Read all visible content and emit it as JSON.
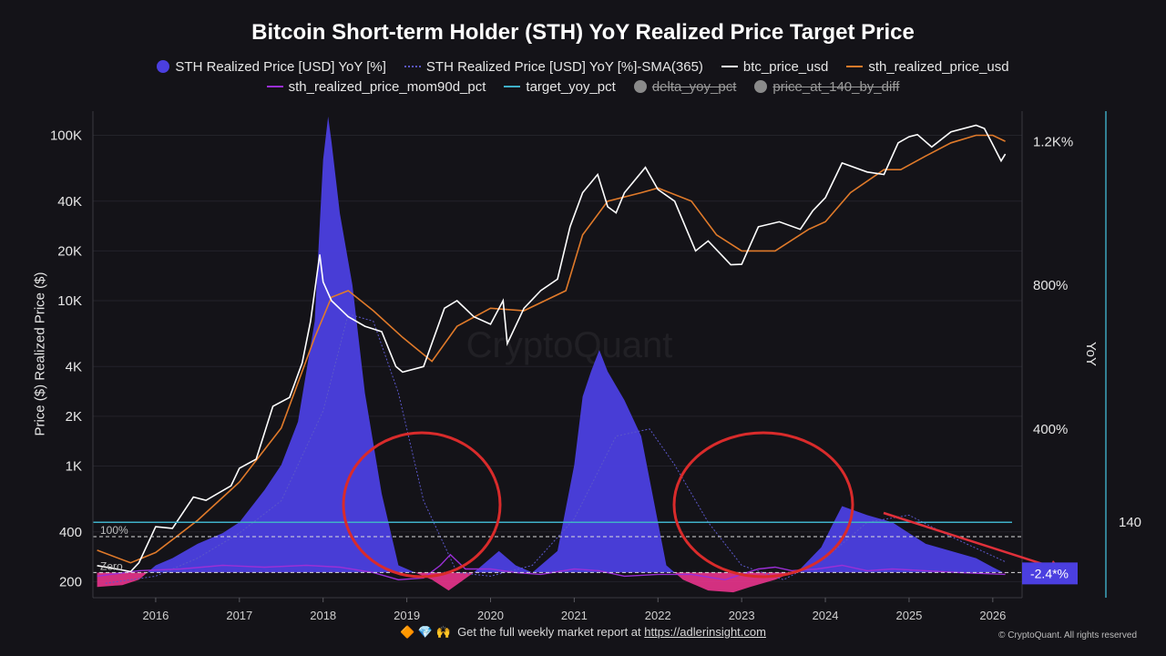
{
  "title": "Bitcoin Short-term Holder (STH) YoY Realized Price Target Price",
  "legend": [
    {
      "label": "STH Realized Price [USD] YoY [%]",
      "color": "#4b3fe0",
      "kind": "dot",
      "enabled": true
    },
    {
      "label": "STH Realized Price [USD] YoY [%]-SMA(365)",
      "color": "#5b57c9",
      "kind": "dash",
      "enabled": true
    },
    {
      "label": "btc_price_usd",
      "color": "#ffffff",
      "kind": "line",
      "enabled": true
    },
    {
      "label": "sth_realized_price_usd",
      "color": "#e07a2a",
      "kind": "line",
      "enabled": true
    },
    {
      "label": "sth_realized_price_mom90d_pct",
      "color": "#9b2fd6",
      "kind": "line",
      "enabled": true
    },
    {
      "label": "target_yoy_pct",
      "color": "#3fb0c8",
      "kind": "line",
      "enabled": true
    },
    {
      "label": "delta_yoy_pct",
      "color": "#8a8a8a",
      "kind": "dot",
      "enabled": false
    },
    {
      "label": "price_at_140_by_diff",
      "color": "#8a8a8a",
      "kind": "dot",
      "enabled": false
    }
  ],
  "axes": {
    "left_title": "Price ($) Realized Price ($)",
    "left_ticks": [
      "100K",
      "40K",
      "20K",
      "10K",
      "4K",
      "2K",
      "1K",
      "400",
      "200"
    ],
    "right_title": "YoY",
    "right_ticks": [
      "1.2K%",
      "800%",
      "400%"
    ],
    "target_label": "140",
    "x_ticks": [
      "2016",
      "2017",
      "2018",
      "2019",
      "2020",
      "2021",
      "2022",
      "2023",
      "2024",
      "2025",
      "2026"
    ]
  },
  "annotations": {
    "hundred_pct": "100%",
    "zero": "Zero",
    "current_yoy": "-2.4*%",
    "watermark": "CryptoQuant"
  },
  "footer": {
    "emoji": "🔶 💎 🙌",
    "text": "Get the full weekly market report at",
    "link": "https://adlerinsight.com",
    "copyright": "© CryptoQuant. All rights reserved"
  },
  "chart_data": {
    "type": "line",
    "title": "Bitcoin Short-term Holder (STH) YoY Realized Price Target Price",
    "x_range": [
      2015.25,
      2026.35
    ],
    "yoy_range_pct": [
      -70,
      1285
    ],
    "price_log_range": [
      160,
      140000
    ],
    "target_yoy_pct": 140,
    "current_yoy_pct": -2.4,
    "btc_price_usd": {
      "x": [
        2015.3,
        2015.5,
        2015.7,
        2015.8,
        2016.0,
        2016.2,
        2016.45,
        2016.6,
        2016.9,
        2017.0,
        2017.2,
        2017.4,
        2017.6,
        2017.75,
        2017.85,
        2017.96,
        2018.0,
        2018.1,
        2018.3,
        2018.5,
        2018.7,
        2018.87,
        2018.95,
        2019.2,
        2019.45,
        2019.6,
        2019.8,
        2020.0,
        2020.15,
        2020.2,
        2020.4,
        2020.6,
        2020.8,
        2020.95,
        2021.1,
        2021.28,
        2021.4,
        2021.5,
        2021.6,
        2021.85,
        2022.0,
        2022.2,
        2022.45,
        2022.6,
        2022.87,
        2023.0,
        2023.2,
        2023.45,
        2023.7,
        2023.85,
        2024.0,
        2024.2,
        2024.5,
        2024.7,
        2024.87,
        2025.0,
        2025.1,
        2025.27,
        2025.5,
        2025.8,
        2025.9,
        2026.0,
        2026.1,
        2026.15
      ],
      "y": [
        250,
        240,
        230,
        260,
        430,
        420,
        650,
        620,
        760,
        970,
        1100,
        2300,
        2600,
        4200,
        7500,
        19000,
        13000,
        10000,
        8000,
        7000,
        6500,
        4000,
        3700,
        4000,
        9000,
        10000,
        8000,
        7200,
        10000,
        5500,
        9000,
        11500,
        13500,
        28000,
        45000,
        58000,
        37000,
        34000,
        45000,
        64000,
        47000,
        40000,
        20000,
        23000,
        16500,
        16600,
        28000,
        30000,
        27000,
        35000,
        42000,
        68000,
        60000,
        58000,
        90000,
        98000,
        101000,
        85000,
        105000,
        115000,
        110000,
        88000,
        70000,
        77000
      ]
    },
    "sth_realized_price_usd": {
      "x": [
        2015.3,
        2015.7,
        2016.0,
        2016.5,
        2017.0,
        2017.5,
        2017.9,
        2018.1,
        2018.3,
        2018.6,
        2018.95,
        2019.3,
        2019.6,
        2020.0,
        2020.4,
        2020.9,
        2021.1,
        2021.4,
        2021.8,
        2022.0,
        2022.4,
        2022.7,
        2023.0,
        2023.4,
        2023.8,
        2024.0,
        2024.3,
        2024.7,
        2024.9,
        2025.2,
        2025.5,
        2025.8,
        2026.0,
        2026.15
      ],
      "y": [
        310,
        260,
        300,
        470,
        800,
        1700,
        6000,
        10500,
        11500,
        8700,
        6000,
        4300,
        7000,
        9000,
        8700,
        11500,
        25000,
        40000,
        45000,
        48000,
        40000,
        25000,
        20000,
        20000,
        27000,
        30000,
        45000,
        62000,
        62000,
        75000,
        90000,
        100000,
        100000,
        92000
      ]
    },
    "sth_realized_yoy_pct": {
      "x": [
        2015.3,
        2015.6,
        2015.8,
        2016.0,
        2016.2,
        2016.5,
        2016.8,
        2017.0,
        2017.3,
        2017.5,
        2017.7,
        2017.9,
        2018.0,
        2018.06,
        2018.1,
        2018.2,
        2018.35,
        2018.5,
        2018.7,
        2018.85,
        2018.9,
        2019.3,
        2019.5,
        2019.8,
        2020.0,
        2020.1,
        2020.3,
        2020.5,
        2020.8,
        2021.0,
        2021.1,
        2021.2,
        2021.3,
        2021.4,
        2021.6,
        2021.8,
        2021.95,
        2022.1,
        2022.3,
        2022.6,
        2022.9,
        2023.1,
        2023.4,
        2023.7,
        2023.95,
        2024.1,
        2024.2,
        2024.5,
        2024.8,
        2025.0,
        2025.2,
        2025.5,
        2025.8,
        2026.0,
        2026.15
      ],
      "y": [
        -40,
        -35,
        -20,
        20,
        40,
        80,
        110,
        140,
        230,
        300,
        420,
        700,
        1150,
        1270,
        1200,
        1000,
        800,
        500,
        220,
        70,
        20,
        -20,
        -50,
        0,
        40,
        60,
        20,
        0,
        60,
        300,
        490,
        560,
        620,
        560,
        480,
        380,
        200,
        20,
        -20,
        -50,
        -55,
        -40,
        -20,
        10,
        70,
        140,
        185,
        160,
        140,
        110,
        80,
        60,
        40,
        15,
        -2.4
      ]
    },
    "sth_yoy_sma365_pct": {
      "x": [
        2015.4,
        2016.0,
        2016.5,
        2017.0,
        2017.5,
        2018.0,
        2018.3,
        2018.6,
        2018.9,
        2019.2,
        2019.6,
        2020.0,
        2020.5,
        2021.0,
        2021.5,
        2021.9,
        2022.2,
        2022.6,
        2023.0,
        2023.5,
        2024.0,
        2024.5,
        2025.0,
        2025.5,
        2026.15
      ],
      "y": [
        -30,
        -10,
        40,
        110,
        200,
        450,
        720,
        700,
        500,
        200,
        0,
        -10,
        20,
        150,
        380,
        400,
        300,
        140,
        20,
        -20,
        40,
        140,
        160,
        100,
        30
      ]
    },
    "sth_mom90d_pct": {
      "x": [
        2015.3,
        2015.8,
        2016.3,
        2016.8,
        2017.3,
        2017.8,
        2018.2,
        2018.6,
        2018.9,
        2019.2,
        2019.4,
        2019.52,
        2019.7,
        2020.0,
        2020.3,
        2020.6,
        2021.0,
        2021.3,
        2021.6,
        2022.0,
        2022.4,
        2022.8,
        2023.2,
        2023.4,
        2023.6,
        2023.9,
        2024.2,
        2024.5,
        2024.8,
        2025.2,
        2025.6,
        2026.15
      ],
      "y": [
        -10,
        5,
        10,
        20,
        15,
        20,
        15,
        0,
        -20,
        -15,
        20,
        50,
        10,
        10,
        0,
        -5,
        10,
        5,
        -10,
        -5,
        -5,
        -20,
        10,
        15,
        5,
        10,
        20,
        5,
        10,
        5,
        0,
        -5
      ]
    }
  }
}
